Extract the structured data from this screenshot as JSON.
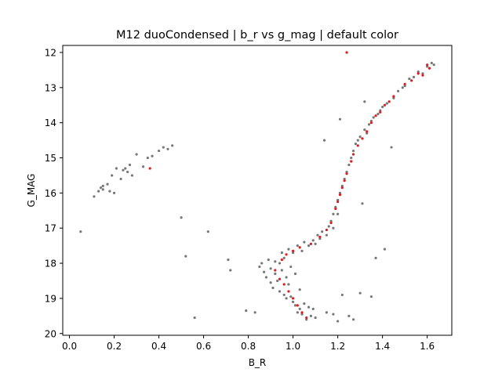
{
  "chart_data": {
    "type": "scatter",
    "title": "M12 duoCondensed | b_r vs g_mag | default color",
    "xlabel": "B_R",
    "ylabel": "G_MAG",
    "xlim": [
      -0.03,
      1.71
    ],
    "ylim": [
      20.05,
      11.8
    ],
    "y_inverted": true,
    "grid": false,
    "xticks": [
      "0.0",
      "0.2",
      "0.4",
      "0.6",
      "0.8",
      "1.0",
      "1.2",
      "1.4",
      "1.6"
    ],
    "yticks": [
      "12",
      "13",
      "14",
      "15",
      "16",
      "17",
      "18",
      "19",
      "20"
    ],
    "colors": {
      "field": "#777777",
      "highlight": "#e31a1c"
    },
    "series": [
      {
        "color": "#777777",
        "points": [
          [
            0.05,
            17.1
          ],
          [
            0.11,
            16.1
          ],
          [
            0.13,
            15.95
          ],
          [
            0.14,
            15.85
          ],
          [
            0.15,
            15.9
          ],
          [
            0.15,
            15.8
          ],
          [
            0.17,
            15.75
          ],
          [
            0.18,
            15.95
          ],
          [
            0.19,
            15.5
          ],
          [
            0.2,
            16.0
          ],
          [
            0.21,
            15.3
          ],
          [
            0.23,
            15.6
          ],
          [
            0.24,
            15.35
          ],
          [
            0.25,
            15.3
          ],
          [
            0.26,
            15.4
          ],
          [
            0.27,
            15.2
          ],
          [
            0.28,
            15.5
          ],
          [
            0.3,
            14.9
          ],
          [
            0.33,
            15.25
          ],
          [
            0.35,
            15.0
          ],
          [
            0.37,
            14.95
          ],
          [
            0.4,
            14.8
          ],
          [
            0.42,
            14.7
          ],
          [
            0.44,
            14.75
          ],
          [
            0.46,
            14.65
          ],
          [
            0.5,
            16.7
          ],
          [
            0.52,
            17.8
          ],
          [
            0.56,
            19.55
          ],
          [
            0.62,
            17.1
          ],
          [
            0.71,
            17.9
          ],
          [
            0.72,
            18.2
          ],
          [
            0.79,
            19.35
          ],
          [
            0.83,
            19.4
          ],
          [
            0.85,
            18.1
          ],
          [
            0.86,
            18.0
          ],
          [
            0.87,
            18.25
          ],
          [
            0.88,
            18.4
          ],
          [
            0.89,
            17.9
          ],
          [
            0.9,
            18.15
          ],
          [
            0.9,
            18.55
          ],
          [
            0.91,
            18.7
          ],
          [
            0.92,
            18.3
          ],
          [
            0.92,
            17.95
          ],
          [
            0.93,
            18.5
          ],
          [
            0.94,
            18.0
          ],
          [
            0.94,
            18.8
          ],
          [
            0.95,
            17.7
          ],
          [
            0.95,
            18.2
          ],
          [
            0.96,
            18.9
          ],
          [
            0.96,
            17.85
          ],
          [
            0.97,
            18.4
          ],
          [
            0.97,
            19.0
          ],
          [
            0.98,
            17.6
          ],
          [
            0.98,
            18.6
          ],
          [
            0.99,
            18.95
          ],
          [
            0.99,
            18.1
          ],
          [
            1.0,
            19.1
          ],
          [
            1.0,
            17.7
          ],
          [
            1.01,
            18.3
          ],
          [
            1.01,
            19.2
          ],
          [
            1.02,
            17.5
          ],
          [
            1.02,
            19.4
          ],
          [
            1.03,
            18.75
          ],
          [
            1.03,
            19.3
          ],
          [
            1.04,
            17.65
          ],
          [
            1.04,
            19.45
          ],
          [
            1.05,
            17.4
          ],
          [
            1.05,
            19.15
          ],
          [
            1.06,
            19.6
          ],
          [
            1.07,
            17.5
          ],
          [
            1.07,
            19.25
          ],
          [
            1.08,
            19.5
          ],
          [
            1.09,
            17.35
          ],
          [
            1.09,
            19.3
          ],
          [
            1.1,
            17.45
          ],
          [
            1.1,
            19.55
          ],
          [
            1.11,
            17.2
          ],
          [
            1.12,
            17.3
          ],
          [
            1.13,
            17.1
          ],
          [
            1.14,
            14.5
          ],
          [
            1.15,
            17.2
          ],
          [
            1.16,
            16.95
          ],
          [
            1.17,
            16.8
          ],
          [
            1.18,
            16.6
          ],
          [
            1.18,
            17.0
          ],
          [
            1.19,
            16.4
          ],
          [
            1.2,
            16.2
          ],
          [
            1.2,
            16.6
          ],
          [
            1.21,
            13.9
          ],
          [
            1.21,
            16.0
          ],
          [
            1.22,
            15.8
          ],
          [
            1.23,
            15.6
          ],
          [
            1.24,
            15.4
          ],
          [
            1.25,
            15.2
          ],
          [
            1.26,
            15.0
          ],
          [
            1.27,
            14.8
          ],
          [
            1.28,
            14.6
          ],
          [
            1.29,
            14.5
          ],
          [
            1.3,
            14.4
          ],
          [
            1.31,
            16.3
          ],
          [
            1.32,
            14.2
          ],
          [
            1.32,
            13.4
          ],
          [
            1.33,
            14.3
          ],
          [
            1.34,
            14.05
          ],
          [
            1.35,
            13.95
          ],
          [
            1.36,
            13.85
          ],
          [
            1.37,
            17.85
          ],
          [
            1.38,
            13.75
          ],
          [
            1.39,
            13.65
          ],
          [
            1.4,
            13.55
          ],
          [
            1.41,
            17.6
          ],
          [
            1.42,
            13.45
          ],
          [
            1.44,
            14.7
          ],
          [
            1.45,
            13.3
          ],
          [
            1.47,
            13.1
          ],
          [
            1.49,
            13.0
          ],
          [
            1.5,
            12.95
          ],
          [
            1.52,
            12.75
          ],
          [
            1.54,
            12.7
          ],
          [
            1.56,
            12.55
          ],
          [
            1.58,
            12.6
          ],
          [
            1.6,
            12.4
          ],
          [
            1.61,
            12.45
          ],
          [
            1.62,
            12.3
          ],
          [
            1.63,
            12.35
          ],
          [
            1.22,
            18.9
          ],
          [
            1.25,
            19.5
          ],
          [
            1.27,
            19.6
          ],
          [
            1.3,
            18.85
          ],
          [
            1.35,
            18.95
          ],
          [
            1.15,
            19.4
          ],
          [
            1.18,
            19.45
          ],
          [
            1.2,
            19.65
          ]
        ]
      },
      {
        "color": "#e31a1c",
        "points": [
          [
            0.36,
            15.3
          ],
          [
            1.24,
            12.0
          ],
          [
            0.92,
            18.2
          ],
          [
            0.94,
            18.45
          ],
          [
            0.96,
            18.6
          ],
          [
            0.98,
            18.8
          ],
          [
            1.0,
            19.0
          ],
          [
            1.02,
            19.2
          ],
          [
            1.04,
            19.4
          ],
          [
            1.06,
            19.55
          ],
          [
            0.95,
            17.9
          ],
          [
            0.97,
            17.75
          ],
          [
            1.0,
            17.65
          ],
          [
            1.03,
            17.55
          ],
          [
            1.08,
            17.45
          ],
          [
            1.12,
            17.25
          ],
          [
            1.15,
            17.05
          ],
          [
            1.17,
            16.85
          ],
          [
            1.19,
            16.45
          ],
          [
            1.2,
            16.25
          ],
          [
            1.21,
            16.05
          ],
          [
            1.22,
            15.85
          ],
          [
            1.23,
            15.65
          ],
          [
            1.24,
            15.45
          ],
          [
            1.26,
            15.1
          ],
          [
            1.27,
            14.9
          ],
          [
            1.29,
            14.65
          ],
          [
            1.31,
            14.45
          ],
          [
            1.33,
            14.25
          ],
          [
            1.35,
            14.0
          ],
          [
            1.37,
            13.8
          ],
          [
            1.39,
            13.7
          ],
          [
            1.41,
            13.5
          ],
          [
            1.43,
            13.4
          ],
          [
            1.45,
            13.25
          ],
          [
            1.5,
            12.9
          ],
          [
            1.53,
            12.8
          ],
          [
            1.56,
            12.6
          ],
          [
            1.58,
            12.65
          ],
          [
            1.6,
            12.35
          ],
          [
            1.61,
            12.45
          ]
        ]
      }
    ]
  }
}
